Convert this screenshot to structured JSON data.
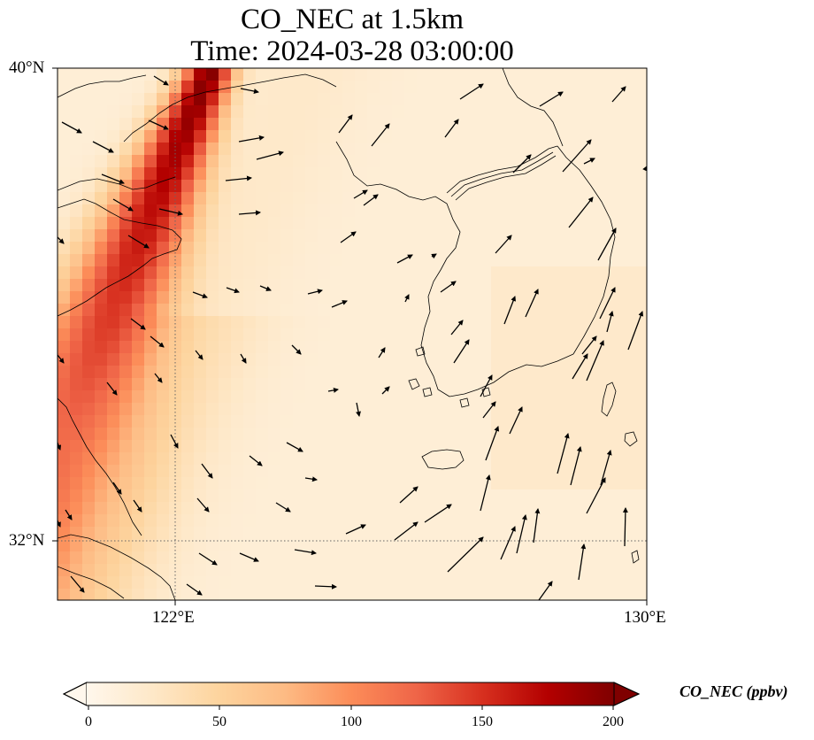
{
  "title": {
    "line1": "CO_NEC at 1.5km",
    "line2": "Time: 2024-03-28 03:00:00"
  },
  "map": {
    "lon_range": [
      120.4,
      130.0
    ],
    "lat_range": [
      31.0,
      40.0
    ],
    "lat_ticks": [
      {
        "value": 40,
        "label": "40°N"
      },
      {
        "value": 32,
        "label": "32°N"
      }
    ],
    "lon_ticks": [
      {
        "value": 122,
        "label": "122°E"
      },
      {
        "value": 130,
        "label": "130°E"
      }
    ],
    "gridlines": {
      "lat": [
        32
      ],
      "lon": [
        122
      ],
      "style": "dotted"
    }
  },
  "colorbar": {
    "label": "CO_NEC (ppbv)",
    "range": [
      0,
      200
    ],
    "ticks": [
      "0",
      "50",
      "100",
      "150",
      "200"
    ],
    "colormap": "OrRd",
    "stops": [
      "#fff7ec",
      "#fee8c8",
      "#fdd49e",
      "#fdbb84",
      "#fc8d59",
      "#ef6548",
      "#d7301f",
      "#b30000",
      "#7f0000"
    ],
    "extend": "both"
  },
  "field": {
    "description_colors_by_value": true,
    "plume_axis": {
      "from": [
        120.4,
        33.7
      ],
      "to": [
        122.9,
        40.0
      ]
    },
    "plume_peak_ppbv": 200,
    "background_ppbv": 15
  }
}
